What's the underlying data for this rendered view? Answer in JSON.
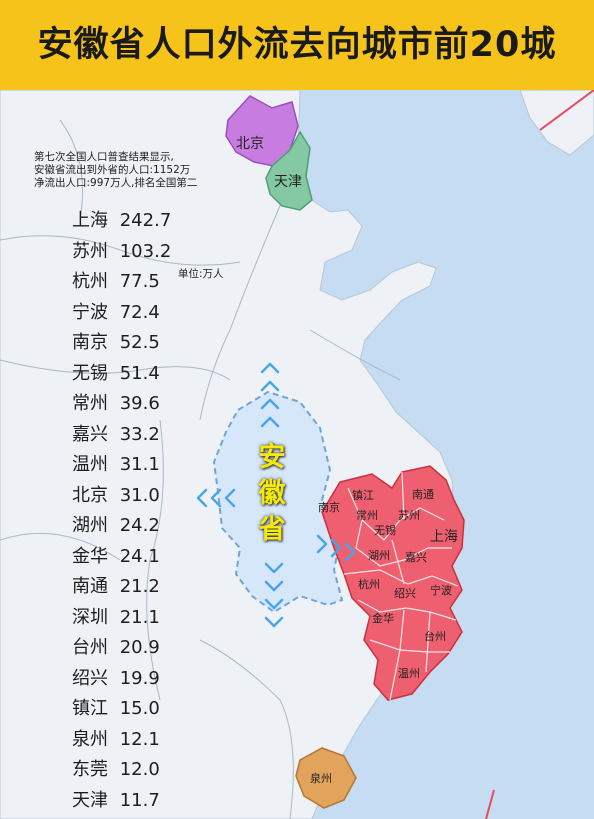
{
  "title": "安徽省人口外流去向城市前20城",
  "notes": [
    "第七次全国人口普查结果显示,",
    "安徽省流出到外省的人口:1152万",
    "净流出人口:997万人,排名全国第二"
  ],
  "unit": "单位:万人",
  "ranking": [
    {
      "city": "上海",
      "value": "242.7"
    },
    {
      "city": "苏州",
      "value": "103.2"
    },
    {
      "city": "杭州",
      "value": "77.5"
    },
    {
      "city": "宁波",
      "value": "72.4"
    },
    {
      "city": "南京",
      "value": "52.5"
    },
    {
      "city": "无锡",
      "value": "51.4"
    },
    {
      "city": "常州",
      "value": "39.6"
    },
    {
      "city": "嘉兴",
      "value": "33.2"
    },
    {
      "city": "温州",
      "value": "31.1"
    },
    {
      "city": "北京",
      "value": "31.0"
    },
    {
      "city": "湖州",
      "value": "24.2"
    },
    {
      "city": "金华",
      "value": "24.1"
    },
    {
      "city": "南通",
      "value": "21.2"
    },
    {
      "city": "深圳",
      "value": "21.1"
    },
    {
      "city": "台州",
      "value": "20.9"
    },
    {
      "city": "绍兴",
      "value": "19.9"
    },
    {
      "city": "镇江",
      "value": "15.0"
    },
    {
      "city": "泉州",
      "value": "12.1"
    },
    {
      "city": "东莞",
      "value": "12.0"
    },
    {
      "city": "天津",
      "value": "11.7"
    }
  ],
  "map_labels": {
    "beijing": "北京",
    "tianjin": "天津",
    "anhui": "安徽省",
    "nanjing": "南京",
    "zhenjiang": "镇江",
    "nantong": "南通",
    "changzhou": "常州",
    "suzhou": "苏州",
    "wuxi": "无锡",
    "shanghai": "上海",
    "huzhou": "湖州",
    "jiaxing": "嘉兴",
    "hangzhou": "杭州",
    "shaoxing": "绍兴",
    "ningbo": "宁波",
    "jinhua": "金华",
    "taizhou": "台州",
    "wenzhou": "温州",
    "quanzhou": "泉州"
  },
  "colors": {
    "banner": "#f6c31a",
    "sea": "#c5dcf2",
    "land": "#eef2f6",
    "anhui_fill": "#d6e7f9",
    "destination_region": "#ee5f6f",
    "beijing": "#c77de0",
    "tianjin": "#84c9a4",
    "quanzhou": "#e2a35c",
    "arrows": "#4aa5e6",
    "anhui_label": "#f4e90c"
  }
}
